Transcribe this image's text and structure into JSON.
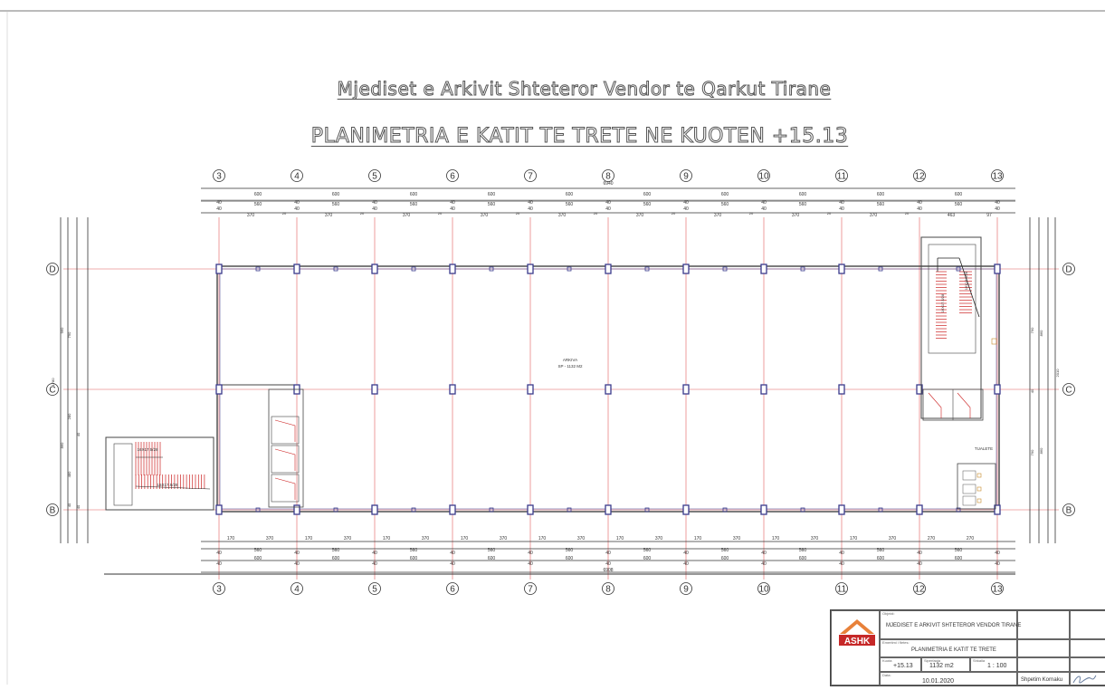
{
  "titles": {
    "line1": "Mjediset e Arkivit Shteteror Vendor te Qarkut Tirane",
    "line2": "PLANIMETRIA E KATIT TE TRETE NE KUOTEN +15.13"
  },
  "grid": {
    "columns": [
      "3",
      "4",
      "5",
      "6",
      "7",
      "8",
      "9",
      "10",
      "11",
      "12",
      "13"
    ],
    "rows": [
      "D",
      "C",
      "B"
    ]
  },
  "dimensions": {
    "total_width": "6940",
    "total_width_bottom": "6908",
    "top_row1": [
      "600",
      "600",
      "600",
      "600",
      "600",
      "600",
      "600",
      "600",
      "600",
      "600"
    ],
    "top_row2": [
      "560",
      "560",
      "560",
      "560",
      "560",
      "560",
      "560",
      "560",
      "560",
      "560"
    ],
    "top_row3": [
      "370",
      "370",
      "370",
      "370",
      "370",
      "370",
      "370",
      "370",
      "370",
      "463"
    ],
    "bottom_row1": [
      "170",
      "370",
      "170",
      "370",
      "170",
      "370",
      "170",
      "370",
      "170",
      "370",
      "170",
      "370",
      "170",
      "370",
      "170",
      "370",
      "170",
      "370",
      "270",
      "270"
    ],
    "bottom_row2": [
      "560",
      "560",
      "560",
      "560",
      "560",
      "560",
      "560",
      "560",
      "560",
      "560"
    ],
    "bottom_row3": [
      "600",
      "600",
      "600",
      "600",
      "600",
      "600",
      "600",
      "600",
      "600",
      "600"
    ],
    "left_labels": [
      "960",
      "790",
      "1780",
      "860",
      "480",
      "40",
      "40",
      "280",
      "40"
    ],
    "right_labels": [
      "790",
      "860",
      "2010",
      "40",
      "790",
      "860"
    ],
    "values": {
      "w40": "40",
      "w20": "20",
      "w97": "97"
    }
  },
  "rooms": {
    "archive_name": "ARKIVA",
    "archive_area": "SP - 1132 M2",
    "toilet": "TUALETE",
    "stair_label": "16X17.5/28"
  },
  "title_block": {
    "logo_text": "ASHK",
    "object_label": "Objekti:",
    "object_value": "MJEDISET E ARKIVIT SHTETEROR VENDOR TIRANE",
    "drawing_label": "Emertimi i fletes:",
    "drawing_value": "PLANIMETRIA E KATIT TE TRETE",
    "level_label": "Kuota",
    "level_value": "+15.13",
    "area_label": "Siperfaqja",
    "area_value": "1132 m2",
    "scale_label": "Shkalla",
    "scale_value": "1 : 100",
    "date_label": "Data:",
    "date_value": "10.01.2020",
    "author": "Shpetim Kornaku"
  },
  "colors": {
    "grid_line": "#e05a5a",
    "column": "#3a3a8c",
    "wall": "#444444",
    "stair": "#cc2222",
    "dim": "#333333"
  }
}
